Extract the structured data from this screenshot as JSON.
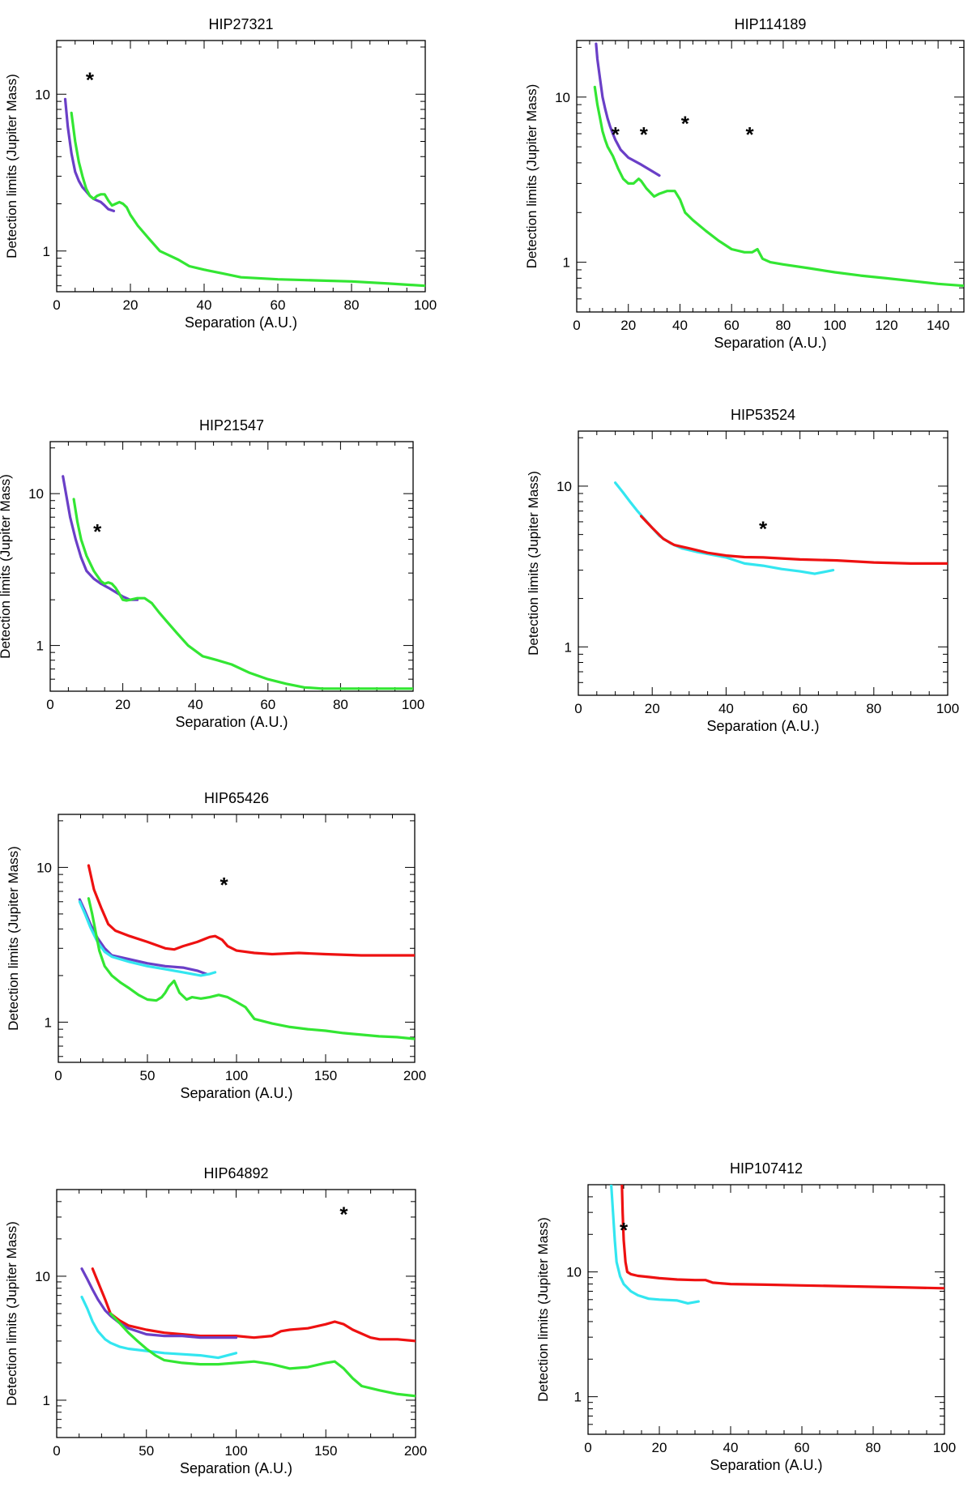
{
  "figure": {
    "xlabel": "Separation (A.U.)",
    "ylabel": "Detection limits (Jupiter Mass)"
  },
  "colors": {
    "green": "#33e633",
    "purple": "#6a3fc7",
    "red": "#ee1111",
    "cyan": "#33e6f0"
  },
  "chart_data": [
    {
      "id": "HIP27321",
      "type": "line",
      "title": "HIP27321",
      "xlabel": "Separation (A.U.)",
      "ylabel": "Detection limits (Jupiter Mass)",
      "xlim": [
        0,
        100
      ],
      "ylim": [
        0.55,
        22
      ],
      "yscale": "log",
      "xticks": [
        0,
        20,
        40,
        60,
        80,
        100
      ],
      "yticks": [
        1,
        10
      ],
      "series": [
        {
          "name": "purple",
          "color": "purple",
          "x": [
            2.3,
            3,
            4,
            5,
            6,
            7,
            8,
            9,
            10,
            11,
            12,
            13,
            14,
            15.5
          ],
          "y": [
            9.3,
            6.2,
            4.2,
            3.2,
            2.8,
            2.55,
            2.4,
            2.25,
            2.15,
            2.1,
            2.05,
            1.95,
            1.85,
            1.8
          ]
        },
        {
          "name": "green",
          "color": "green",
          "x": [
            4,
            5,
            6,
            7,
            8,
            9,
            10,
            11,
            12,
            13,
            14,
            15,
            16,
            17,
            18,
            19,
            20,
            22,
            25,
            28,
            30,
            33,
            36,
            40,
            45,
            50,
            60,
            70,
            80,
            90,
            100
          ],
          "y": [
            7.6,
            5,
            3.7,
            3,
            2.5,
            2.25,
            2.15,
            2.25,
            2.3,
            2.3,
            2.1,
            1.95,
            2.0,
            2.05,
            2.0,
            1.9,
            1.7,
            1.45,
            1.2,
            1.0,
            0.95,
            0.88,
            0.8,
            0.76,
            0.72,
            0.68,
            0.66,
            0.65,
            0.64,
            0.62,
            0.6
          ]
        }
      ],
      "markers": [
        {
          "label": "*",
          "x": 9,
          "y": 12.5
        }
      ]
    },
    {
      "id": "HIP114189",
      "type": "line",
      "title": "HIP114189",
      "xlabel": "Separation (A.U.)",
      "ylabel": "Detection limits (Jupiter Mass)",
      "xlim": [
        0,
        150
      ],
      "ylim": [
        0.5,
        22
      ],
      "yscale": "log",
      "xticks": [
        0,
        20,
        40,
        60,
        80,
        100,
        120,
        140
      ],
      "yticks": [
        1,
        10
      ],
      "series": [
        {
          "name": "purple",
          "color": "purple",
          "x": [
            7.5,
            8,
            9,
            10,
            11,
            12,
            13,
            14,
            15,
            17,
            20,
            25,
            30,
            32
          ],
          "y": [
            21,
            17,
            13,
            10,
            8.5,
            7.4,
            6.6,
            6.0,
            5.5,
            4.8,
            4.3,
            3.9,
            3.5,
            3.35
          ]
        },
        {
          "name": "green",
          "color": "green",
          "x": [
            7,
            8,
            9,
            10,
            11,
            12,
            14,
            16,
            18,
            20,
            22,
            24,
            25,
            27,
            30,
            32,
            35,
            38,
            40,
            42,
            45,
            50,
            55,
            60,
            65,
            68,
            70,
            72,
            75,
            80,
            90,
            100,
            110,
            120,
            130,
            140,
            150
          ],
          "y": [
            11.5,
            9,
            7.5,
            6.2,
            5.5,
            5.0,
            4.4,
            3.7,
            3.2,
            3.0,
            3.0,
            3.2,
            3.1,
            2.8,
            2.5,
            2.6,
            2.7,
            2.7,
            2.4,
            2.0,
            1.8,
            1.55,
            1.35,
            1.2,
            1.15,
            1.15,
            1.2,
            1.05,
            1.0,
            0.97,
            0.92,
            0.87,
            0.83,
            0.8,
            0.77,
            0.74,
            0.72
          ]
        }
      ],
      "markers": [
        {
          "label": "*",
          "x": 15,
          "y": 6
        },
        {
          "label": "*",
          "x": 26,
          "y": 6
        },
        {
          "label": "*",
          "x": 42,
          "y": 7
        },
        {
          "label": "*",
          "x": 67,
          "y": 6
        }
      ]
    },
    {
      "id": "HIP21547",
      "type": "line",
      "title": "HIP21547",
      "xlabel": "Separation (A.U.)",
      "ylabel": "Detection limits (Jupiter Mass)",
      "xlim": [
        0,
        100
      ],
      "ylim": [
        0.5,
        22
      ],
      "yscale": "log",
      "xticks": [
        0,
        20,
        40,
        60,
        80,
        100
      ],
      "yticks": [
        1,
        10
      ],
      "series": [
        {
          "name": "purple",
          "color": "purple",
          "x": [
            3.5,
            4.5,
            5.5,
            7,
            8.5,
            10,
            12,
            14,
            16,
            18,
            20,
            22,
            24
          ],
          "y": [
            13,
            9.5,
            7,
            5,
            3.8,
            3.1,
            2.75,
            2.55,
            2.4,
            2.25,
            2.1,
            2.0,
            2.0
          ]
        },
        {
          "name": "green",
          "color": "green",
          "x": [
            6.5,
            7.5,
            8.5,
            10,
            12,
            14,
            15,
            16,
            17,
            18,
            19,
            20,
            21,
            22,
            24,
            26,
            28,
            30,
            32,
            35,
            38,
            42,
            46,
            50,
            55,
            60,
            65,
            70,
            75,
            80,
            90,
            100
          ],
          "y": [
            9.2,
            6.5,
            5.0,
            3.9,
            3.1,
            2.65,
            2.55,
            2.6,
            2.55,
            2.4,
            2.2,
            2.0,
            1.98,
            2.0,
            2.05,
            2.05,
            1.9,
            1.65,
            1.45,
            1.2,
            1.0,
            0.85,
            0.8,
            0.75,
            0.66,
            0.6,
            0.56,
            0.53,
            0.52,
            0.52,
            0.52,
            0.52
          ]
        }
      ],
      "markers": [
        {
          "label": "*",
          "x": 13,
          "y": 5.7
        }
      ]
    },
    {
      "id": "HIP53524",
      "type": "line",
      "title": "HIP53524",
      "xlabel": "Separation (A.U.)",
      "ylabel": "Detection limits (Jupiter Mass)",
      "xlim": [
        0,
        100
      ],
      "ylim": [
        0.5,
        22
      ],
      "yscale": "log",
      "xticks": [
        0,
        20,
        40,
        60,
        80,
        100
      ],
      "yticks": [
        1,
        10
      ],
      "series": [
        {
          "name": "cyan",
          "color": "cyan",
          "x": [
            10,
            12,
            14,
            16,
            18,
            20,
            22,
            25,
            28,
            32,
            36,
            40,
            45,
            50,
            55,
            60,
            64,
            69
          ],
          "y": [
            10.5,
            9.2,
            8.0,
            7.0,
            6.2,
            5.5,
            4.9,
            4.4,
            4.1,
            3.9,
            3.75,
            3.6,
            3.3,
            3.2,
            3.05,
            2.95,
            2.85,
            3.0
          ]
        },
        {
          "name": "red",
          "color": "red",
          "x": [
            17,
            20,
            23,
            26,
            30,
            35,
            40,
            45,
            50,
            55,
            60,
            70,
            80,
            90,
            100
          ],
          "y": [
            6.5,
            5.5,
            4.7,
            4.3,
            4.1,
            3.85,
            3.7,
            3.62,
            3.6,
            3.55,
            3.5,
            3.45,
            3.35,
            3.3,
            3.3
          ]
        }
      ],
      "markers": [
        {
          "label": "*",
          "x": 50,
          "y": 5.5
        }
      ]
    },
    {
      "id": "HIP65426",
      "type": "line",
      "title": "HIP65426",
      "xlabel": "Separation (A.U.)",
      "ylabel": "Detection limits (Jupiter Mass)",
      "xlim": [
        0,
        200
      ],
      "ylim": [
        0.55,
        22
      ],
      "yscale": "log",
      "xticks": [
        0,
        50,
        100,
        150,
        200
      ],
      "yticks": [
        1,
        10
      ],
      "series": [
        {
          "name": "red",
          "color": "red",
          "x": [
            17,
            20,
            24,
            28,
            32,
            40,
            50,
            60,
            65,
            70,
            78,
            85,
            88,
            92,
            95,
            100,
            110,
            120,
            135,
            150,
            170,
            200
          ],
          "y": [
            10.3,
            7.2,
            5.5,
            4.3,
            3.9,
            3.6,
            3.3,
            3.0,
            2.95,
            3.1,
            3.3,
            3.55,
            3.6,
            3.4,
            3.1,
            2.9,
            2.8,
            2.75,
            2.8,
            2.75,
            2.7,
            2.7
          ]
        },
        {
          "name": "purple",
          "color": "purple",
          "x": [
            12,
            15,
            18,
            22,
            26,
            30,
            40,
            50,
            60,
            70,
            78,
            83
          ],
          "y": [
            6.2,
            5.2,
            4.3,
            3.5,
            3.0,
            2.7,
            2.55,
            2.4,
            2.3,
            2.25,
            2.15,
            2.05
          ]
        },
        {
          "name": "cyan",
          "color": "cyan",
          "x": [
            12,
            15,
            18,
            22,
            26,
            30,
            40,
            50,
            60,
            70,
            80,
            85,
            88
          ],
          "y": [
            6.0,
            5.0,
            4.1,
            3.3,
            2.85,
            2.65,
            2.45,
            2.3,
            2.2,
            2.1,
            2.0,
            2.05,
            2.1
          ]
        },
        {
          "name": "green",
          "color": "green",
          "x": [
            17,
            19,
            21,
            23,
            26,
            30,
            35,
            40,
            45,
            50,
            55,
            58,
            60,
            62,
            65,
            68,
            72,
            75,
            80,
            85,
            90,
            95,
            100,
            105,
            110,
            120,
            130,
            140,
            150,
            160,
            170,
            180,
            190,
            200
          ],
          "y": [
            6.3,
            5.0,
            3.8,
            2.9,
            2.3,
            2.0,
            1.8,
            1.65,
            1.5,
            1.4,
            1.38,
            1.45,
            1.55,
            1.7,
            1.85,
            1.55,
            1.4,
            1.45,
            1.42,
            1.45,
            1.5,
            1.45,
            1.35,
            1.25,
            1.05,
            0.98,
            0.93,
            0.9,
            0.88,
            0.85,
            0.83,
            0.81,
            0.8,
            0.78
          ]
        }
      ],
      "markers": [
        {
          "label": "*",
          "x": 93,
          "y": 7.8
        }
      ]
    },
    {
      "id": "HIP64892",
      "type": "line",
      "title": "HIP64892",
      "xlabel": "Separation (A.U.)",
      "ylabel": "Detection limits (Jupiter Mass)",
      "xlim": [
        0,
        200
      ],
      "ylim": [
        0.5,
        50
      ],
      "yscale": "log",
      "xticks": [
        0,
        50,
        100,
        150,
        200
      ],
      "yticks": [
        1,
        10
      ],
      "series": [
        {
          "name": "red",
          "color": "red",
          "x": [
            20,
            23,
            27,
            30,
            35,
            40,
            50,
            60,
            70,
            80,
            90,
            100,
            110,
            120,
            125,
            130,
            140,
            150,
            155,
            160,
            165,
            175,
            180,
            190,
            200
          ],
          "y": [
            11.5,
            9.0,
            6.5,
            5.0,
            4.4,
            4.0,
            3.7,
            3.5,
            3.4,
            3.3,
            3.3,
            3.3,
            3.2,
            3.3,
            3.6,
            3.7,
            3.8,
            4.1,
            4.3,
            4.1,
            3.7,
            3.2,
            3.1,
            3.1,
            3.0
          ]
        },
        {
          "name": "purple",
          "color": "purple",
          "x": [
            14,
            17,
            20,
            23,
            27,
            30,
            35,
            40,
            50,
            60,
            70,
            80,
            90,
            100
          ],
          "y": [
            11.5,
            9.5,
            7.8,
            6.5,
            5.3,
            4.8,
            4.2,
            3.8,
            3.4,
            3.3,
            3.3,
            3.2,
            3.2,
            3.2
          ]
        },
        {
          "name": "cyan",
          "color": "cyan",
          "x": [
            14,
            17,
            20,
            23,
            27,
            30,
            35,
            40,
            50,
            60,
            70,
            80,
            90,
            100
          ],
          "y": [
            6.8,
            5.5,
            4.3,
            3.6,
            3.1,
            2.9,
            2.7,
            2.6,
            2.5,
            2.4,
            2.35,
            2.3,
            2.2,
            2.4
          ]
        },
        {
          "name": "green",
          "color": "green",
          "x": [
            30,
            35,
            40,
            45,
            50,
            55,
            60,
            70,
            80,
            90,
            100,
            110,
            120,
            130,
            140,
            150,
            155,
            160,
            165,
            170,
            180,
            190,
            200
          ],
          "y": [
            5.0,
            4.2,
            3.5,
            3.0,
            2.6,
            2.3,
            2.1,
            2.0,
            1.95,
            1.95,
            2.0,
            2.05,
            1.95,
            1.8,
            1.85,
            2.0,
            2.05,
            1.8,
            1.5,
            1.3,
            1.2,
            1.12,
            1.08
          ]
        }
      ],
      "markers": [
        {
          "label": "*",
          "x": 160,
          "y": 32
        }
      ]
    },
    {
      "id": "HIP107412",
      "type": "line",
      "title": "HIP107412",
      "xlabel": "Separation (A.U.)",
      "ylabel": "Detection limits (Jupiter Mass)",
      "xlim": [
        0,
        100
      ],
      "ylim": [
        0.5,
        50
      ],
      "yscale": "log",
      "xticks": [
        0,
        20,
        40,
        60,
        80,
        100
      ],
      "yticks": [
        1,
        10
      ],
      "series": [
        {
          "name": "red",
          "color": "red",
          "x": [
            9.5,
            9.7,
            10,
            10.5,
            11,
            12,
            14,
            17,
            20,
            25,
            30,
            33,
            35,
            40,
            50,
            60,
            70,
            80,
            90,
            100
          ],
          "y": [
            50,
            30,
            18,
            12,
            10,
            9.6,
            9.3,
            9.1,
            8.9,
            8.7,
            8.6,
            8.6,
            8.2,
            8.0,
            7.9,
            7.8,
            7.7,
            7.6,
            7.5,
            7.4
          ]
        },
        {
          "name": "cyan",
          "color": "cyan",
          "x": [
            6.5,
            7,
            7.5,
            8,
            9,
            10,
            12,
            14,
            17,
            20,
            25,
            28,
            31
          ],
          "y": [
            50,
            30,
            18,
            12,
            9.2,
            8.0,
            7.0,
            6.5,
            6.1,
            6.0,
            5.9,
            5.6,
            5.8
          ]
        }
      ],
      "markers": [
        {
          "label": "*",
          "x": 10,
          "y": 22
        }
      ]
    }
  ]
}
